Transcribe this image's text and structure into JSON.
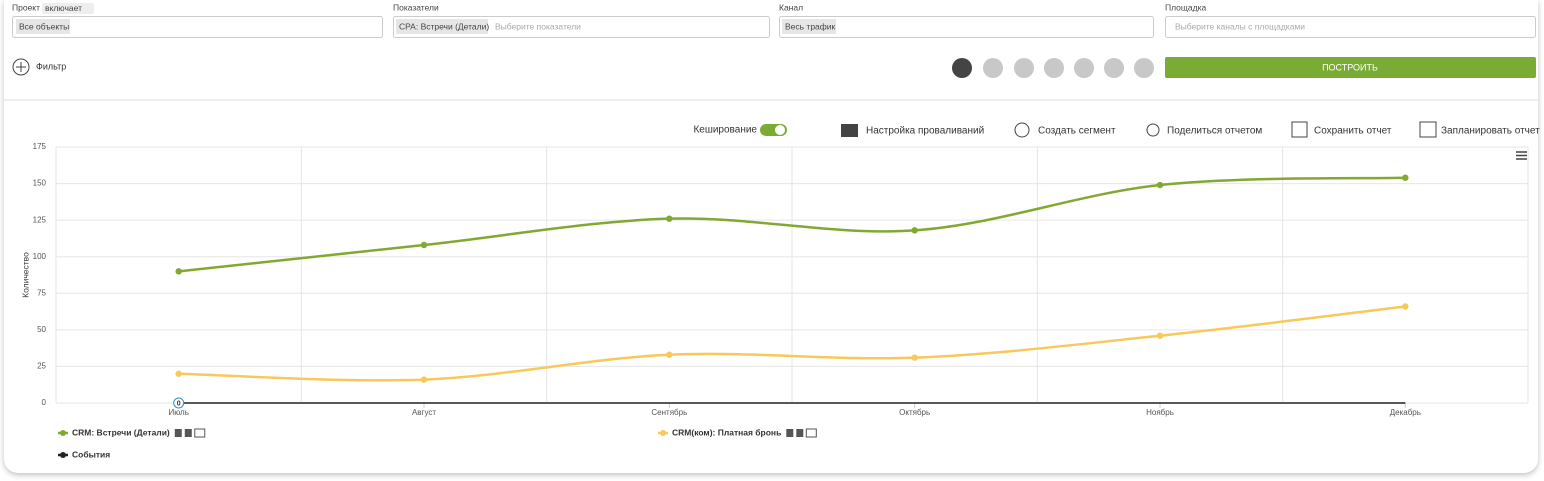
{
  "filters": [
    {
      "label": "Проект",
      "qualifier": "включает",
      "tag": "Все объекты"
    },
    {
      "label": "Показатели",
      "tag": "CPA: Встречи (Детали)",
      "placeholder": "Выберите показатели"
    },
    {
      "label": "Канал",
      "tag": "Весь трафик"
    },
    {
      "label": "Площадка",
      "placeholder": "Выберите каналы с площадками"
    }
  ],
  "filter_button": "Фильтр",
  "build_button": "ПОСТРОИТЬ",
  "caching_label": "Кеширование",
  "toolbar": [
    "Настройка проваливаний",
    "Создать сегмент",
    "Поделиться отчетом",
    "Сохранить отчет",
    "Запланировать отчет"
  ],
  "chart": {
    "type": "line",
    "ylabel": "Количество",
    "categories": [
      "Июль",
      "Август",
      "Сентябрь",
      "Октябрь",
      "Ноябрь",
      "Декабрь"
    ],
    "series": [
      {
        "name": "CRM: Встречи (Детали)",
        "color": "#82a832",
        "values": [
          90,
          108,
          126,
          118,
          149,
          154
        ]
      },
      {
        "name": "CRM(ком): Платная бронь",
        "color": "#f8c85a",
        "values": [
          20,
          16,
          33,
          31,
          46,
          66
        ]
      },
      {
        "name": "События",
        "color": "#222222",
        "values": [
          0,
          0,
          0,
          0,
          0,
          0
        ]
      }
    ],
    "event_label": "0",
    "ylim": [
      0,
      175
    ],
    "yticks": [
      0,
      25,
      50,
      75,
      100,
      125,
      150,
      175
    ],
    "grid": true
  }
}
